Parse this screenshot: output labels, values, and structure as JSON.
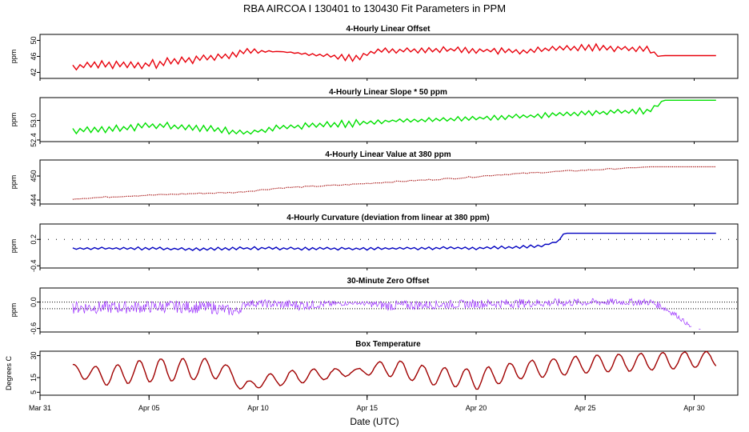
{
  "page": {
    "main_title": "RBA   AIRCOA I   130401 to 130430   Fit Parameters in PPM",
    "x_axis_label": "Date (UTC)",
    "x_ticks": [
      "Mar 31",
      "Apr 05",
      "Apr 10",
      "Apr 15",
      "Apr 20",
      "Apr 25",
      "Apr 30"
    ]
  },
  "chart_data": [
    {
      "id": "offset",
      "type": "line",
      "title": "4-Hourly Linear Offset",
      "ylabel": "ppm",
      "ylim": [
        40.5,
        51.5
      ],
      "yticks": [
        "42",
        "46",
        "50"
      ],
      "ytick_values": [
        42,
        46,
        50
      ],
      "color": "#e8000b",
      "style": "zigzag",
      "xlim": [
        0,
        32
      ],
      "x": [
        1.5,
        2.5,
        4.5,
        6.5,
        8.5,
        9.5,
        11,
        14.5,
        15.5,
        19,
        22,
        25,
        28,
        28.3,
        28.6,
        31
      ],
      "y": [
        43.2,
        44.2,
        43.6,
        45,
        46.2,
        47.3,
        47.2,
        45.5,
        47.5,
        47.7,
        47.2,
        48.4,
        47.8,
        46,
        46.2,
        46.2
      ],
      "amp": [
        1,
        1.1,
        1.2,
        1.1,
        1,
        0.9,
        0,
        0.9,
        0.7,
        0.8,
        0.9,
        1,
        1,
        0,
        0,
        0
      ]
    },
    {
      "id": "slope",
      "type": "line",
      "title": "4-Hourly Linear Slope * 50 ppm",
      "ylabel": "ppm",
      "ylim": [
        52.35,
        53.7
      ],
      "yticks": [
        "52.4",
        "53.0"
      ],
      "ytick_values": [
        52.4,
        53.0
      ],
      "color": "#00e000",
      "style": "zigzag",
      "xlim": [
        0,
        32
      ],
      "x": [
        1.5,
        3,
        5,
        7,
        9,
        9.5,
        11,
        14.5,
        16,
        19,
        22,
        25,
        28,
        28.6,
        31
      ],
      "y": [
        52.68,
        52.72,
        52.84,
        52.8,
        52.64,
        52.62,
        52.78,
        52.92,
        52.98,
        53.04,
        53.12,
        53.22,
        53.3,
        53.62,
        53.62
      ],
      "amp": [
        0.1,
        0.11,
        0.12,
        0.12,
        0.12,
        0.08,
        0.1,
        0.12,
        0.05,
        0.08,
        0.08,
        0.1,
        0.1,
        0,
        0
      ]
    },
    {
      "id": "value380",
      "type": "line",
      "title": "4-Hourly Linear Value at 380 ppm",
      "ylabel": "ppm",
      "ylim": [
        443,
        454
      ],
      "yticks": [
        "444",
        "450"
      ],
      "ytick_values": [
        444,
        450
      ],
      "color": "#a00000",
      "style": "dotted",
      "xlim": [
        0,
        32
      ],
      "x": [
        1.5,
        4,
        7,
        9,
        11,
        14,
        16,
        19,
        21,
        24,
        26,
        28,
        31
      ],
      "y": [
        444.3,
        445,
        445.6,
        445.9,
        447,
        447.8,
        448.5,
        449.4,
        450.3,
        451.2,
        451.7,
        452.3,
        452.3
      ],
      "amp": [
        0.15,
        0.15,
        0.15,
        0.15,
        0.15,
        0.15,
        0.15,
        0.15,
        0.15,
        0.15,
        0.15,
        0,
        0
      ]
    },
    {
      "id": "curvature",
      "type": "line",
      "title": "4-Hourly Curvature (deviation from linear at 380 ppm)",
      "ylabel": "ppm",
      "ylim": [
        -0.45,
        0.55
      ],
      "yticks": [
        "-0.4",
        "0.2"
      ],
      "ytick_values": [
        -0.4,
        0.2
      ],
      "color": "#0000c0",
      "style": "zigzag",
      "xlim": [
        0,
        32
      ],
      "x": [
        1.5,
        4,
        7,
        10,
        12,
        15,
        18,
        20,
        22,
        23,
        23.5,
        23.8,
        24,
        24.1,
        31
      ],
      "y": [
        -0.01,
        0.0,
        -0.02,
        0.0,
        -0.01,
        -0.01,
        0.0,
        0.0,
        0.03,
        0.06,
        0.12,
        0.16,
        0.32,
        0.34,
        0.34
      ],
      "amp": [
        0.035,
        0.035,
        0.035,
        0.035,
        0.035,
        0.035,
        0.035,
        0.035,
        0.035,
        0.035,
        0.02,
        0.02,
        0,
        0,
        0
      ],
      "ref_lines": [
        {
          "style": "dotted",
          "y": 0.2
        }
      ]
    },
    {
      "id": "zero",
      "type": "line",
      "title": "30-Minute Zero Offset",
      "ylabel": "ppm",
      "ylim": [
        -0.68,
        0.32
      ],
      "yticks": [
        "-0.6",
        "0.0"
      ],
      "ytick_values": [
        -0.6,
        0.0
      ],
      "color": "#9b30ff",
      "style": "dense",
      "xlim": [
        0,
        32
      ],
      "x": [
        1.5,
        4,
        6,
        8,
        9,
        9.5,
        12,
        14.5,
        16,
        18,
        20,
        23,
        26,
        28,
        28.5,
        29.2,
        29.8,
        30.3
      ],
      "y": [
        -0.12,
        -0.12,
        -0.1,
        -0.13,
        -0.22,
        -0.02,
        -0.07,
        -0.02,
        -0.08,
        -0.06,
        -0.04,
        -0.02,
        0.0,
        0.0,
        -0.1,
        -0.3,
        -0.55,
        -0.62
      ],
      "amp": [
        0.15,
        0.14,
        0.14,
        0.14,
        0.12,
        0.08,
        0.12,
        0.03,
        0.12,
        0.1,
        0.1,
        0.1,
        0.08,
        0.08,
        0.08,
        0.06,
        0.04,
        0
      ],
      "ref_lines": [
        {
          "style": "dotted",
          "y": 0.0
        },
        {
          "style": "dotted",
          "y": -0.15
        }
      ]
    },
    {
      "id": "boxtemp",
      "type": "line",
      "title": "Box Temperature",
      "ylabel": "Degrees C",
      "ylim": [
        3,
        33
      ],
      "yticks": [
        "5",
        "15",
        "30"
      ],
      "ytick_values": [
        5,
        15,
        30
      ],
      "color": "#a00000",
      "style": "daily",
      "xlim": [
        0,
        32
      ],
      "x": [
        1.5,
        3,
        5,
        8,
        8.8,
        9.2,
        10,
        12,
        14.5,
        16,
        18,
        20,
        22,
        25,
        28,
        31
      ],
      "y": [
        20,
        16,
        20,
        21,
        18,
        8,
        12,
        16,
        19,
        22,
        16,
        14,
        20,
        24,
        26,
        28
      ],
      "amp": [
        4,
        6,
        8,
        7,
        4,
        2,
        4,
        5,
        2,
        6,
        6,
        7,
        6,
        6,
        6,
        5
      ]
    }
  ]
}
